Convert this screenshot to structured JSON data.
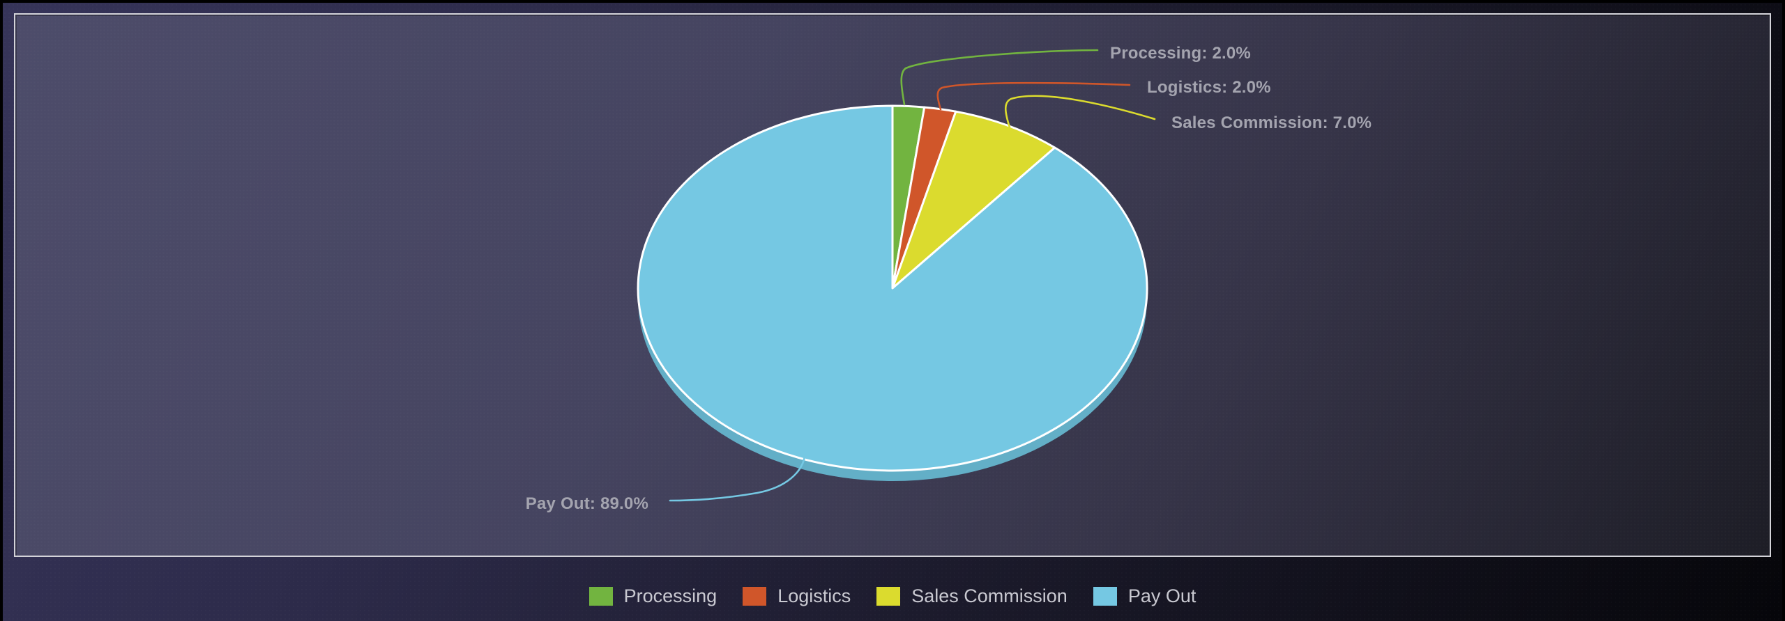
{
  "chart_data": {
    "type": "pie",
    "style": "3d",
    "categories": [
      "Processing",
      "Logistics",
      "Sales Commission",
      "Pay Out"
    ],
    "values": [
      2.0,
      2.0,
      7.0,
      89.0
    ],
    "unit": "%",
    "colors": [
      "#72b440",
      "#d0562a",
      "#dbdb2e",
      "#75c8e3"
    ],
    "side_color": "#63afc7",
    "slice_border_color": "#ffffff",
    "start_angle_deg": 0,
    "direction": "clockwise",
    "legend_position": "bottom",
    "data_labels": [
      "Processing: 2.0%",
      "Logistics: 2.0%",
      "Sales Commission: 7.0%",
      "Pay Out: 89.0%"
    ]
  },
  "callouts": [
    {
      "text": "Processing: 2.0%"
    },
    {
      "text": "Logistics: 2.0%"
    },
    {
      "text": "Sales Commission: 7.0%"
    },
    {
      "text": "Pay Out: 89.0%"
    }
  ],
  "legend": {
    "items": [
      {
        "label": "Processing"
      },
      {
        "label": "Logistics"
      },
      {
        "label": "Sales Commission"
      },
      {
        "label": "Pay Out"
      }
    ]
  },
  "theme": {
    "callout_text_color": "#a4a4af",
    "legend_text_color": "#c9c9d1",
    "panel_border_color": "#d3d3d9"
  }
}
